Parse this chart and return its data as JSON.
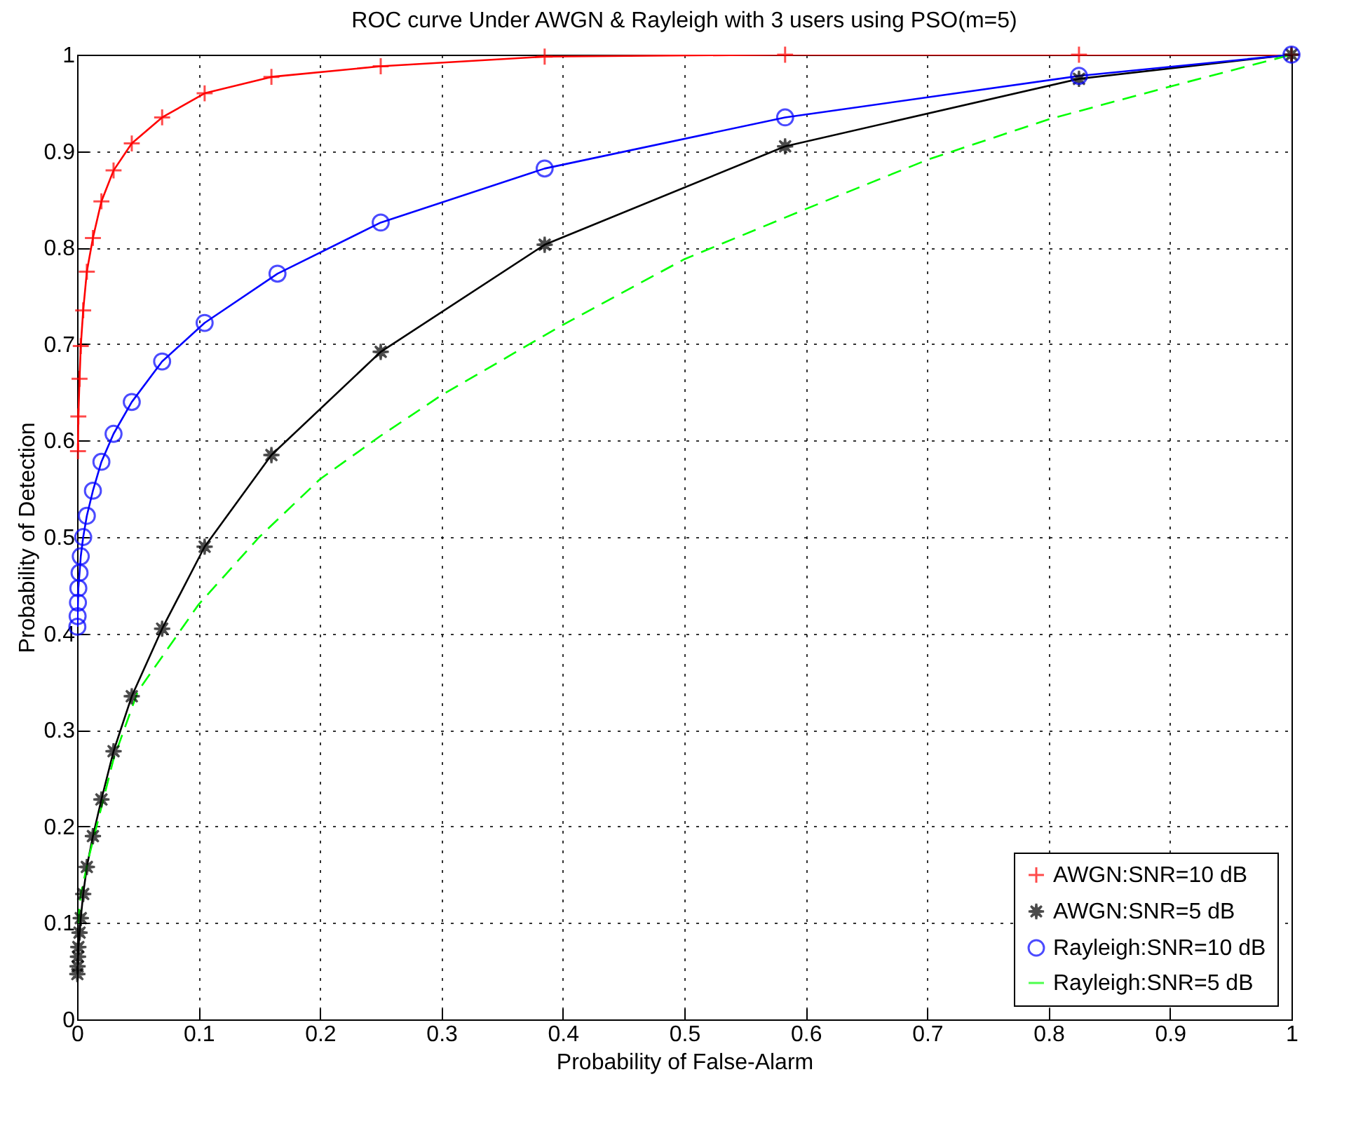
{
  "chart_data": {
    "type": "line",
    "title": "ROC curve Under AWGN & Rayleigh with 3 users using PSO(m=5)",
    "xlabel": "Probability of False-Alarm",
    "ylabel": "Probability of Detection",
    "xlim": [
      0,
      1
    ],
    "ylim": [
      0,
      1
    ],
    "xticks": [
      0,
      0.1,
      0.2,
      0.3,
      0.4,
      0.5,
      0.6,
      0.7,
      0.8,
      0.9,
      1
    ],
    "yticks": [
      0,
      0.1,
      0.2,
      0.3,
      0.4,
      0.5,
      0.6,
      0.7,
      0.8,
      0.9,
      1
    ],
    "grid": true,
    "legend": "bottom right",
    "series": [
      {
        "name": "AWGN:SNR=10 dB",
        "color": "#ff0000",
        "marker": "cross",
        "line_style": "solid",
        "x": [
          0.0007,
          0.001,
          0.002,
          0.003,
          0.005,
          0.008,
          0.013,
          0.02,
          0.03,
          0.045,
          0.07,
          0.105,
          0.16,
          0.25,
          0.385,
          0.583,
          0.825,
          1
        ],
        "values": [
          0.589,
          0.625,
          0.664,
          0.698,
          0.735,
          0.775,
          0.81,
          0.848,
          0.88,
          0.908,
          0.935,
          0.96,
          0.977,
          0.988,
          0.998,
          1,
          1,
          1
        ]
      },
      {
        "name": "AWGN:SNR=5 dB",
        "color": "#000000",
        "marker": "star",
        "line_style": "solid",
        "x": [
          0.0002,
          0.0004,
          0.0007,
          0.001,
          0.002,
          0.003,
          0.005,
          0.008,
          0.013,
          0.02,
          0.03,
          0.045,
          0.07,
          0.105,
          0.16,
          0.25,
          0.385,
          0.583,
          0.825,
          1
        ],
        "values": [
          0.047,
          0.055,
          0.065,
          0.075,
          0.09,
          0.105,
          0.13,
          0.158,
          0.19,
          0.228,
          0.278,
          0.335,
          0.405,
          0.49,
          0.585,
          0.692,
          0.803,
          0.905,
          0.975,
          1
        ]
      },
      {
        "name": "Rayleigh:SNR=10 dB",
        "color": "#0000ff",
        "marker": "circle",
        "line_style": "solid",
        "x": [
          0.0002,
          0.0004,
          0.0007,
          0.001,
          0.002,
          0.003,
          0.005,
          0.008,
          0.013,
          0.02,
          0.03,
          0.045,
          0.07,
          0.105,
          0.165,
          0.25,
          0.385,
          0.583,
          0.825,
          1
        ],
        "values": [
          0.407,
          0.418,
          0.432,
          0.447,
          0.463,
          0.48,
          0.5,
          0.522,
          0.548,
          0.578,
          0.607,
          0.64,
          0.682,
          0.722,
          0.773,
          0.826,
          0.882,
          0.935,
          0.978,
          1
        ]
      },
      {
        "name": "Rayleigh:SNR=5 dB",
        "color": "#00ff00",
        "marker": "none",
        "line_style": "dashed",
        "x": [
          0.001,
          0.003,
          0.01,
          0.03,
          0.05,
          0.1,
          0.15,
          0.2,
          0.25,
          0.3,
          0.4,
          0.5,
          0.6,
          0.7,
          0.8,
          0.9,
          1
        ],
        "values": [
          0.1,
          0.13,
          0.17,
          0.27,
          0.34,
          0.43,
          0.5,
          0.56,
          0.605,
          0.647,
          0.72,
          0.788,
          0.84,
          0.891,
          0.933,
          0.967,
          1
        ]
      }
    ]
  }
}
